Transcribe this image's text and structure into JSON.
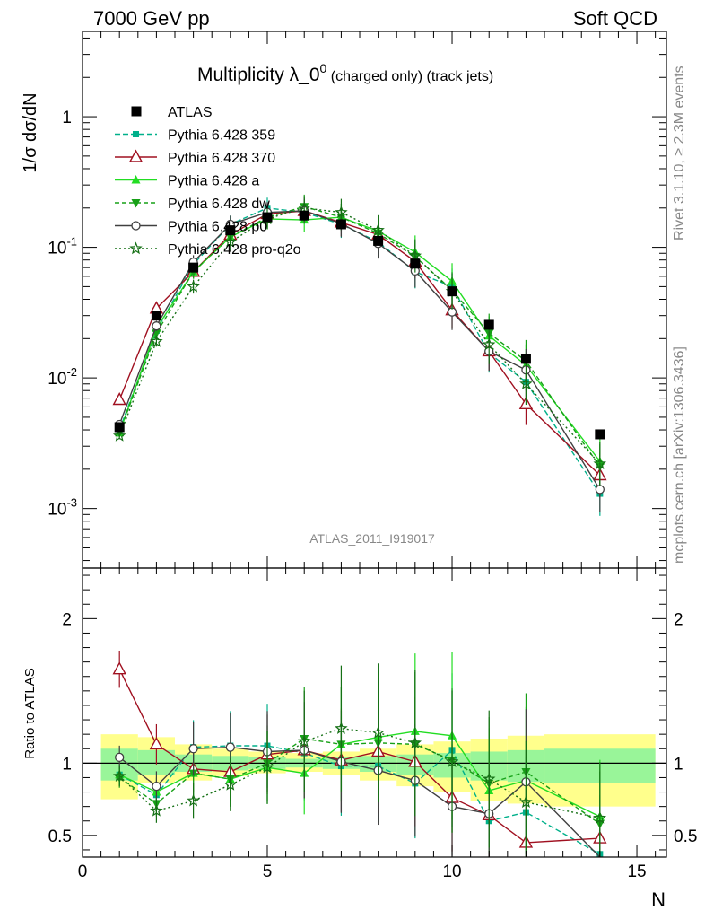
{
  "header": {
    "left": "7000 GeV pp",
    "right": "Soft QCD"
  },
  "side_labels": {
    "rivet": "Rivet 3.1.10, ≥ 2.3M events",
    "mcplots": "mcplots.cern.ch [arXiv:1306.3436]"
  },
  "chart_data": {
    "type": "line",
    "title_main": "Multiplicity λ_0",
    "title_sup": "0",
    "title_rest": " (charged only) (track jets)",
    "watermark": "ATLAS_2011_I919017",
    "xlabel": "N",
    "ylabel_top": "1/σ dσ/dN",
    "ylabel_bottom": "Ratio to ATLAS",
    "xlim": [
      0,
      15.8
    ],
    "ylim_top": [
      0.00035,
      4.5
    ],
    "ylim_bottom": [
      0.35,
      2.35
    ],
    "yscale_top": "log",
    "x_ticks": [
      "0",
      "5",
      "10",
      "15"
    ],
    "y_ticks_top": [
      "10",
      "10",
      "1",
      "10",
      "10"
    ],
    "y_ticks_top_exp": [
      "-3",
      "-2",
      "",
      "-1",
      ""
    ],
    "y_ticks_bottom": [
      "0.5",
      "1",
      "2"
    ],
    "x": [
      1,
      2,
      3,
      4,
      5,
      6,
      7,
      8,
      9,
      10,
      11,
      12,
      14
    ],
    "data": {
      "name": "ATLAS",
      "values": [
        0.0042,
        0.03,
        0.07,
        0.135,
        0.17,
        0.175,
        0.15,
        0.112,
        0.075,
        0.046,
        0.0255,
        0.014,
        0.0037
      ]
    },
    "bands": {
      "edges": [
        0.5,
        1.5,
        2.5,
        3.5,
        4.5,
        5.5,
        6.5,
        7.5,
        8.5,
        9.5,
        10.5,
        11.5,
        12.5,
        15.5
      ],
      "yellow_lo": [
        0.75,
        0.86,
        0.88,
        0.91,
        0.93,
        0.94,
        0.92,
        0.88,
        0.84,
        0.8,
        0.74,
        0.72,
        0.7
      ],
      "yellow_hi": [
        1.2,
        1.18,
        1.13,
        1.1,
        1.08,
        1.07,
        1.08,
        1.1,
        1.13,
        1.15,
        1.17,
        1.19,
        1.2
      ],
      "green_lo": [
        0.88,
        0.92,
        0.94,
        0.95,
        0.96,
        0.97,
        0.96,
        0.94,
        0.92,
        0.9,
        0.88,
        0.87,
        0.86
      ],
      "green_hi": [
        1.1,
        1.09,
        1.06,
        1.05,
        1.04,
        1.03,
        1.04,
        1.05,
        1.06,
        1.07,
        1.08,
        1.09,
        1.1
      ]
    },
    "series": [
      {
        "name": "Pythia 6.428 359",
        "color": "#00b08a",
        "dash": "6,3",
        "marker": "square",
        "values": [
          0.004,
          0.023,
          0.074,
          0.15,
          0.2,
          0.185,
          0.15,
          0.11,
          0.065,
          0.05,
          0.0155,
          0.0093,
          0.0013
        ],
        "ratio": [
          0.92,
          0.78,
          1.11,
          1.12,
          1.12,
          1.07,
          0.98,
          0.98,
          0.86,
          1.09,
          0.6,
          0.66,
          0.37
        ]
      },
      {
        "name": "Pythia 6.428 370",
        "color": "#a01020",
        "dash": "",
        "marker": "triangle-open",
        "values": [
          0.0068,
          0.034,
          0.065,
          0.125,
          0.18,
          0.19,
          0.155,
          0.125,
          0.078,
          0.033,
          0.016,
          0.0063,
          0.0018
        ],
        "ratio": [
          1.65,
          1.13,
          0.96,
          0.94,
          1.06,
          1.09,
          1.02,
          1.08,
          1.01,
          0.76,
          0.64,
          0.45,
          0.48
        ]
      },
      {
        "name": "Pythia 6.428 a",
        "color": "#22dd22",
        "dash": "",
        "marker": "triangle",
        "values": [
          0.0038,
          0.024,
          0.065,
          0.12,
          0.165,
          0.162,
          0.17,
          0.133,
          0.092,
          0.055,
          0.021,
          0.0125,
          0.0023
        ],
        "ratio": [
          0.92,
          0.8,
          0.93,
          0.89,
          0.97,
          0.93,
          1.13,
          1.18,
          1.22,
          1.19,
          0.81,
          0.88,
          0.63
        ]
      },
      {
        "name": "Pythia 6.428 dw",
        "color": "#17a017",
        "dash": "5,3",
        "marker": "triangle-down",
        "values": [
          0.0038,
          0.022,
          0.065,
          0.12,
          0.17,
          0.205,
          0.17,
          0.128,
          0.085,
          0.047,
          0.022,
          0.0135,
          0.0021
        ],
        "ratio": [
          0.9,
          0.72,
          0.93,
          0.89,
          1.0,
          1.17,
          1.13,
          1.14,
          1.13,
          1.02,
          0.86,
          0.94,
          0.58
        ]
      },
      {
        "name": "Pythia 6.428 p0",
        "color": "#404040",
        "dash": "",
        "marker": "circle-open",
        "values": [
          0.0044,
          0.025,
          0.077,
          0.15,
          0.185,
          0.19,
          0.152,
          0.107,
          0.066,
          0.032,
          0.016,
          0.0115,
          0.0014
        ],
        "ratio": [
          1.04,
          0.84,
          1.1,
          1.11,
          1.08,
          1.09,
          1.01,
          0.95,
          0.88,
          0.7,
          0.65,
          0.87,
          0.33
        ]
      },
      {
        "name": "Pythia 6.428 pro-q2o",
        "color": "#157015",
        "dash": "2,3",
        "marker": "star",
        "values": [
          0.0036,
          0.019,
          0.05,
          0.11,
          0.165,
          0.2,
          0.185,
          0.135,
          0.086,
          0.046,
          0.018,
          0.009,
          0.0022
        ],
        "ratio": [
          0.91,
          0.67,
          0.74,
          0.85,
          0.97,
          1.15,
          1.24,
          1.21,
          1.14,
          1.01,
          0.89,
          0.73,
          0.62
        ]
      }
    ]
  }
}
